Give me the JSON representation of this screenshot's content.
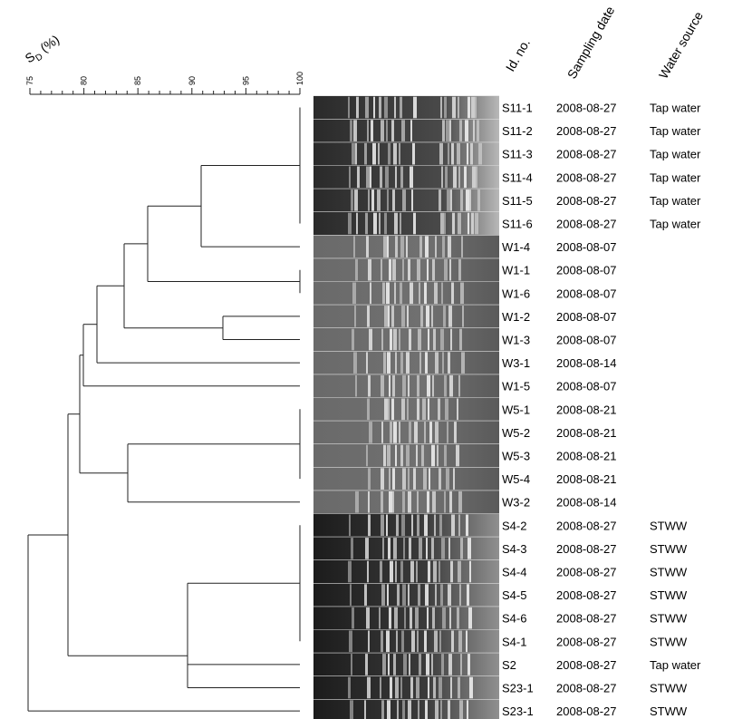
{
  "axis": {
    "label_main": "S",
    "label_sub": "D",
    "label_unit": " (%)",
    "ticks": [
      "75",
      "80",
      "85",
      "90",
      "95",
      "100"
    ]
  },
  "columns": {
    "id": "Id. no.",
    "date": "Sampling date",
    "source": "Water source"
  },
  "rows": [
    {
      "id": "S11-1",
      "date": "2008-08-27",
      "source": "Tap water"
    },
    {
      "id": "S11-2",
      "date": "2008-08-27",
      "source": "Tap water"
    },
    {
      "id": "S11-3",
      "date": "2008-08-27",
      "source": "Tap water"
    },
    {
      "id": "S11-4",
      "date": "2008-08-27",
      "source": "Tap water"
    },
    {
      "id": "S11-5",
      "date": "2008-08-27",
      "source": "Tap water"
    },
    {
      "id": "S11-6",
      "date": "2008-08-27",
      "source": "Tap water"
    },
    {
      "id": "W1-4",
      "date": "2008-08-07",
      "source": ""
    },
    {
      "id": "W1-1",
      "date": "2008-08-07",
      "source": ""
    },
    {
      "id": "W1-6",
      "date": "2008-08-07",
      "source": ""
    },
    {
      "id": "W1-2",
      "date": "2008-08-07",
      "source": ""
    },
    {
      "id": "W1-3",
      "date": "2008-08-07",
      "source": ""
    },
    {
      "id": "W3-1",
      "date": "2008-08-14",
      "source": ""
    },
    {
      "id": "W1-5",
      "date": "2008-08-07",
      "source": ""
    },
    {
      "id": "W5-1",
      "date": "2008-08-21",
      "source": ""
    },
    {
      "id": "W5-2",
      "date": "2008-08-21",
      "source": ""
    },
    {
      "id": "W5-3",
      "date": "2008-08-21",
      "source": ""
    },
    {
      "id": "W5-4",
      "date": "2008-08-21",
      "source": ""
    },
    {
      "id": "W3-2",
      "date": "2008-08-14",
      "source": ""
    },
    {
      "id": "S4-2",
      "date": "2008-08-27",
      "source": "STWW"
    },
    {
      "id": "S4-3",
      "date": "2008-08-27",
      "source": "STWW"
    },
    {
      "id": "S4-4",
      "date": "2008-08-27",
      "source": "STWW"
    },
    {
      "id": "S4-5",
      "date": "2008-08-27",
      "source": "STWW"
    },
    {
      "id": "S4-6",
      "date": "2008-08-27",
      "source": "STWW"
    },
    {
      "id": "S4-1",
      "date": "2008-08-27",
      "source": "STWW"
    },
    {
      "id": "S2",
      "date": "2008-08-27",
      "source": "Tap water"
    },
    {
      "id": "S23-1",
      "date": "2008-08-27",
      "source": "STWW"
    },
    {
      "id": "S23-1",
      "date": "2008-08-27",
      "source": "STWW"
    }
  ]
}
